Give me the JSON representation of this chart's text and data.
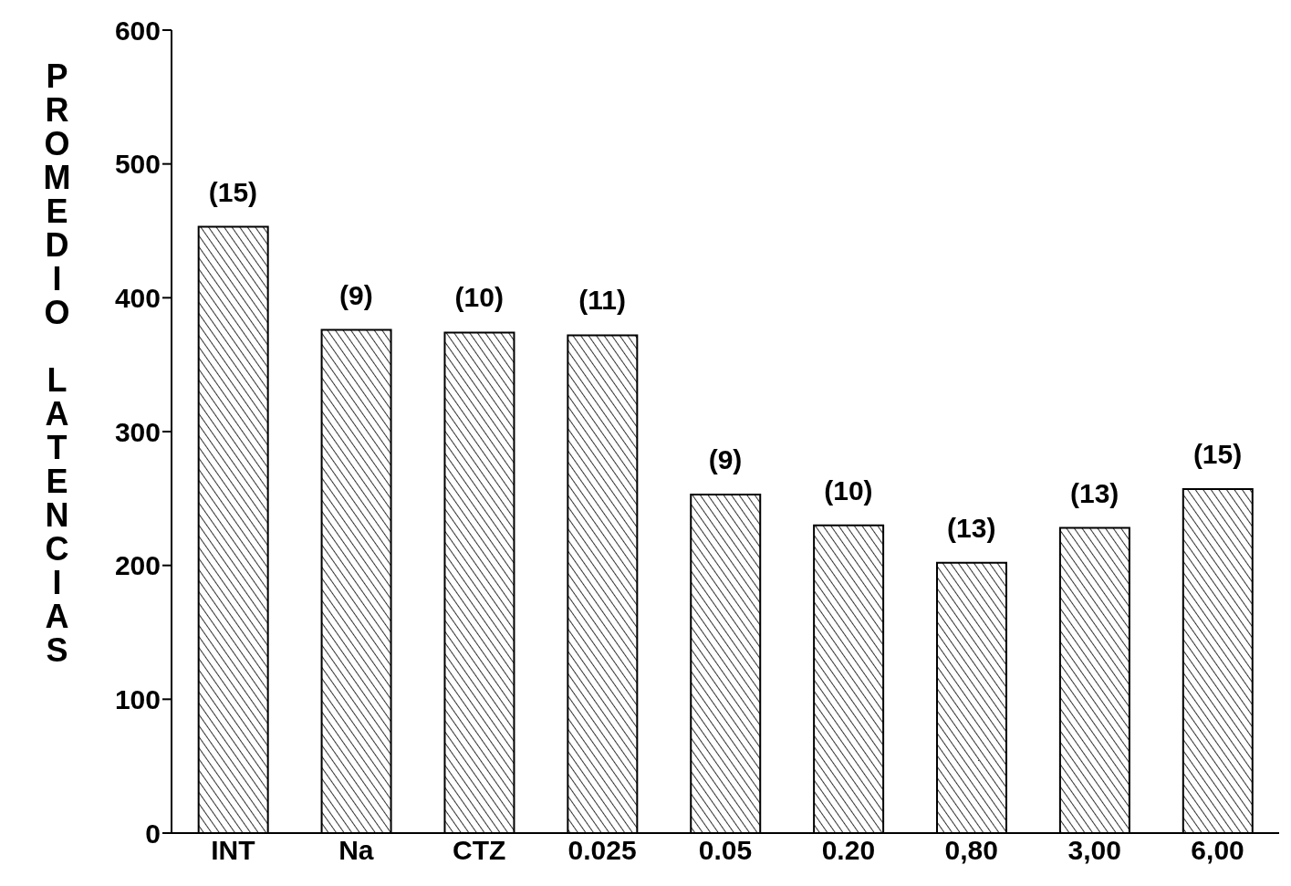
{
  "chart_data": {
    "type": "bar",
    "ylabel": "PROMEDIO LATENCIAS",
    "categories": [
      "INT",
      "Na",
      "CTZ",
      "0.025",
      "0.05",
      "0.20",
      "0,80",
      "3,00",
      "6,00"
    ],
    "values": [
      453,
      376,
      374,
      372,
      253,
      230,
      202,
      228,
      257
    ],
    "annotations": [
      {
        "text": "(15)",
        "x": "INT",
        "y": 453
      },
      {
        "text": "(9)",
        "x": "Na",
        "y": 376
      },
      {
        "text": "(10)",
        "x": "CTZ",
        "y": 374
      },
      {
        "text": "(11)",
        "x": "0.025",
        "y": 372
      },
      {
        "text": "(9)",
        "x": "0.05",
        "y": 253
      },
      {
        "text": "(10)",
        "x": "0.20",
        "y": 230
      },
      {
        "text": "(13)",
        "x": "0,80",
        "y": 202
      },
      {
        "text": "(13)",
        "x": "3,00",
        "y": 228
      },
      {
        "text": "(15)",
        "x": "6,00",
        "y": 257
      }
    ],
    "color": "#000000",
    "ylim": [
      0,
      600
    ],
    "yticks": [
      0,
      100,
      200,
      300,
      400,
      500,
      600
    ],
    "grid": false,
    "legend": false
  }
}
